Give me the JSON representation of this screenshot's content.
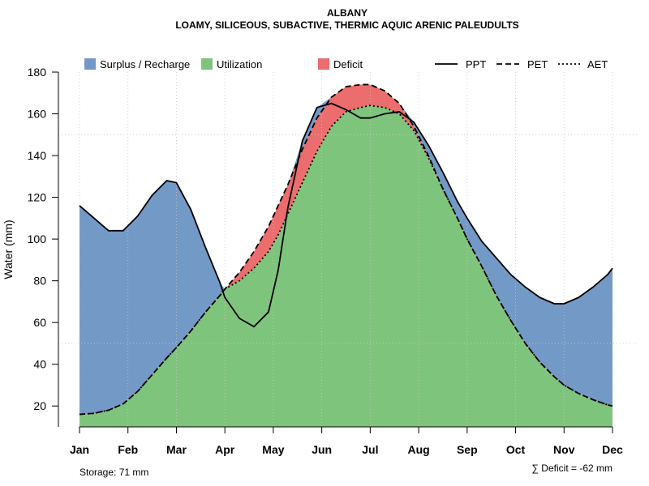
{
  "chart_data": {
    "type": "area",
    "title": "ALBANY",
    "subtitle": "LOAMY, SILICEOUS, SUBACTIVE, THERMIC AQUIC ARENIC PALEUDULTS",
    "xlabel": "",
    "ylabel": "Water (mm)",
    "ylim": [
      10,
      180
    ],
    "yticks": [
      20,
      40,
      60,
      80,
      100,
      120,
      140,
      160,
      180
    ],
    "categories": [
      "Jan",
      "Feb",
      "Mar",
      "Apr",
      "May",
      "Jun",
      "Jul",
      "Aug",
      "Sep",
      "Oct",
      "Nov",
      "Dec"
    ],
    "grid": true,
    "legend": [
      {
        "label": "Surplus / Recharge",
        "kind": "fill",
        "color": "#7399c6"
      },
      {
        "label": "Utilization",
        "kind": "fill",
        "color": "#7fc47c"
      },
      {
        "label": "Deficit",
        "kind": "fill",
        "color": "#eb6d6d"
      },
      {
        "label": "PPT",
        "kind": "line",
        "dash": "solid"
      },
      {
        "label": "PET",
        "kind": "line",
        "dash": "dashed"
      },
      {
        "label": "AET",
        "kind": "line",
        "dash": "dotted"
      }
    ],
    "series": [
      {
        "name": "PPT",
        "x": [
          1,
          1.3,
          1.6,
          1.9,
          2.2,
          2.5,
          2.8,
          3,
          3.3,
          3.6,
          3.9,
          4,
          4.3,
          4.6,
          4.9,
          5.1,
          5.3,
          5.6,
          5.9,
          6.2,
          6.5,
          6.8,
          7,
          7.3,
          7.6,
          7.9,
          8.2,
          8.5,
          8.8,
          9,
          9.3,
          9.6,
          9.9,
          10.2,
          10.5,
          10.8,
          11,
          11.3,
          11.6,
          11.9,
          12
        ],
        "values": [
          116,
          110,
          104,
          104,
          111,
          121,
          128,
          127,
          114,
          96,
          79,
          72,
          62,
          58,
          65,
          85,
          115,
          147,
          163,
          165,
          162,
          158,
          158,
          160,
          161,
          156,
          145,
          132,
          118,
          110,
          99,
          91,
          83,
          77,
          72,
          69,
          69,
          72,
          77,
          83,
          86
        ]
      },
      {
        "name": "PET",
        "x": [
          1,
          1.3,
          1.6,
          1.9,
          2.2,
          2.5,
          2.8,
          3,
          3.3,
          3.6,
          3.9,
          4,
          4.3,
          4.6,
          4.9,
          5.1,
          5.3,
          5.6,
          5.9,
          6.2,
          6.5,
          6.8,
          7,
          7.3,
          7.6,
          7.9,
          8.2,
          8.5,
          8.8,
          9,
          9.3,
          9.6,
          9.9,
          10.2,
          10.5,
          10.8,
          11,
          11.3,
          11.6,
          11.9,
          12
        ],
        "values": [
          16,
          16.5,
          18,
          21,
          27,
          35,
          43,
          48,
          56,
          65,
          73,
          76,
          84,
          94,
          106,
          116,
          126,
          143,
          158,
          168,
          173,
          174,
          174,
          171,
          165,
          154,
          140,
          124,
          110,
          100,
          87,
          73,
          61,
          50,
          41,
          34,
          30,
          26,
          23,
          20.5,
          20
        ]
      },
      {
        "name": "AET",
        "x": [
          1,
          1.3,
          1.6,
          1.9,
          2.2,
          2.5,
          2.8,
          3,
          3.3,
          3.6,
          3.9,
          4,
          4.3,
          4.6,
          4.9,
          5.1,
          5.3,
          5.6,
          5.9,
          6.2,
          6.5,
          6.8,
          7,
          7.3,
          7.6,
          7.9,
          8.2,
          8.5,
          8.8,
          9,
          9.3,
          9.6,
          9.9,
          10.2,
          10.5,
          10.8,
          11,
          11.3,
          11.6,
          11.9,
          12
        ],
        "values": [
          16,
          16.5,
          18,
          21,
          27,
          35,
          43,
          48,
          56,
          65,
          73,
          76,
          80,
          86,
          94,
          102,
          112,
          127,
          142,
          154,
          161,
          163,
          164,
          163,
          160,
          152,
          139,
          124,
          110,
          100,
          87,
          73,
          61,
          50,
          41,
          34,
          30,
          26,
          23,
          20.5,
          20
        ]
      }
    ],
    "footer_left": "Storage: 71 mm",
    "footer_right": "∑ Deficit = -62 mm"
  }
}
